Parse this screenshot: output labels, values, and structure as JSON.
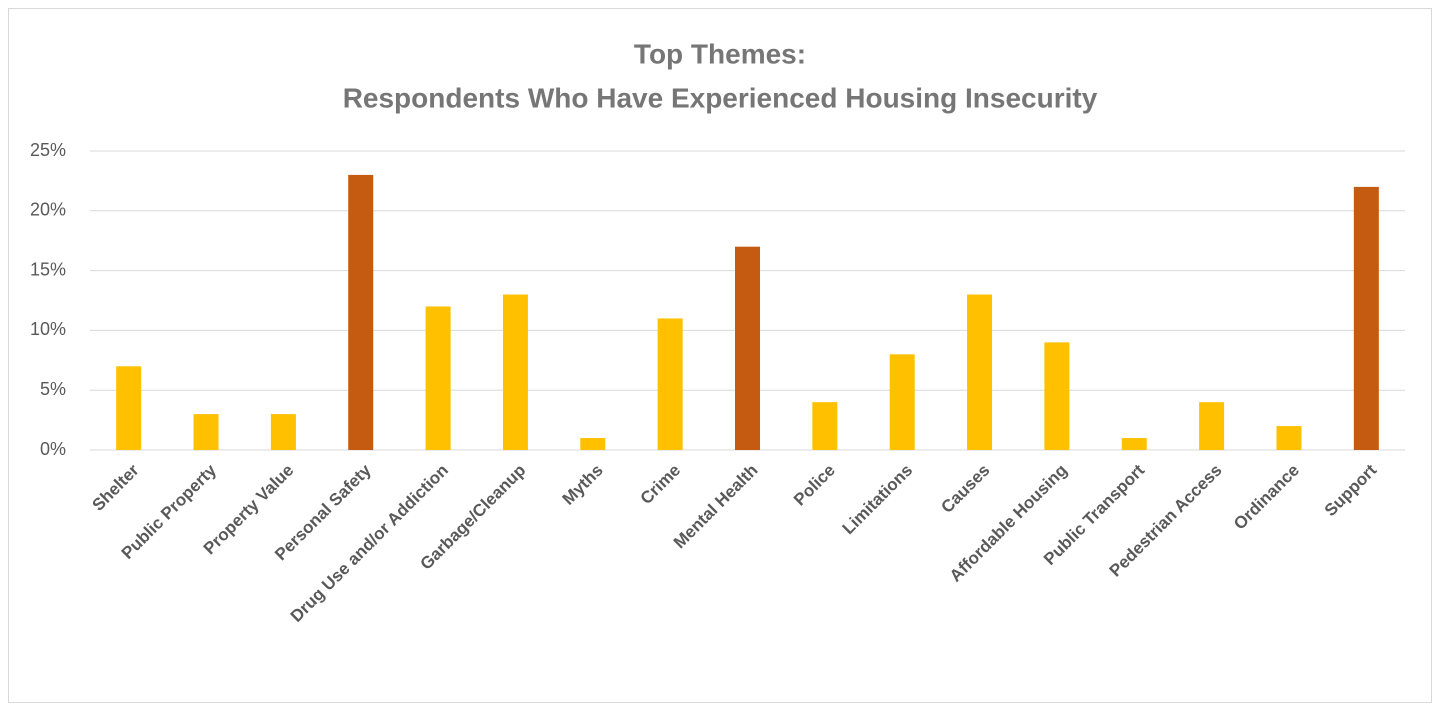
{
  "chart_data": {
    "type": "bar",
    "title": "Top Themes:",
    "subtitle": "Respondents Who Have Experienced Housing Insecurity",
    "categories": [
      "Shelter",
      "Public Property",
      "Property Value",
      "Personal Safety",
      "Drug Use and/or Addiction",
      "Garbage/Cleanup",
      "Myths",
      "Crime",
      "Mental Health",
      "Police",
      "Limitations",
      "Causes",
      "Affordable Housing",
      "Public Transport",
      "Pedestrian Access",
      "Ordinance",
      "Support"
    ],
    "values": [
      7,
      3,
      3,
      23,
      12,
      13,
      1,
      11,
      17,
      4,
      8,
      13,
      9,
      1,
      4,
      2,
      22
    ],
    "colors": [
      "#FFC000",
      "#FFC000",
      "#FFC000",
      "#C55A11",
      "#FFC000",
      "#FFC000",
      "#FFC000",
      "#FFC000",
      "#C55A11",
      "#FFC000",
      "#FFC000",
      "#FFC000",
      "#FFC000",
      "#FFC000",
      "#FFC000",
      "#FFC000",
      "#C55A11"
    ],
    "ylim": [
      0,
      25
    ],
    "yticks": [
      {
        "value": 0,
        "label": "0%"
      },
      {
        "value": 5,
        "label": "5%"
      },
      {
        "value": 10,
        "label": "10%"
      },
      {
        "value": 15,
        "label": "15%"
      },
      {
        "value": 20,
        "label": "20%"
      },
      {
        "value": 25,
        "label": "25%"
      }
    ],
    "grid": true
  }
}
